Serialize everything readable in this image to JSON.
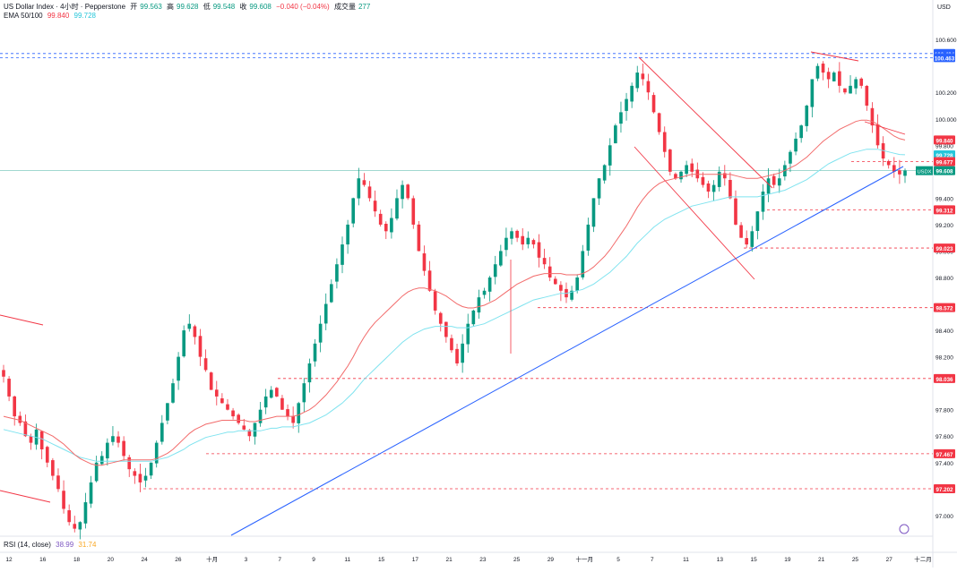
{
  "header": {
    "line1": "US Dollar Index · 4小时 · Pepperstone",
    "open_label": "开",
    "open": "99.563",
    "high_label": "高",
    "high": "99.628",
    "low_label": "低",
    "low": "99.548",
    "close_label": "收",
    "close": "99.608",
    "change": "−0.040 (−0.04%)",
    "volume_label": "成交量",
    "volume": "277",
    "ema_label": "EMA 50/100",
    "ema50": "99.840",
    "ema100": "99.728"
  },
  "rsi": {
    "label": "RSI (14, close)",
    "value1": "38.99",
    "value2": "31.74"
  },
  "colors": {
    "up": "#089981",
    "down": "#f23645",
    "ema50": "#f26b6b",
    "ema100": "#7fe3ef",
    "trend": "#2962ff",
    "channel": "#f23645",
    "price": "#089981"
  },
  "chart_data": {
    "type": "candlestick",
    "title": "US Dollar Index · 4小时 · Pepperstone",
    "currency": "USD",
    "y_range": [
      96.85,
      100.75
    ],
    "y_ticks": [
      "100.600",
      "100.200",
      "100.000",
      "99.800",
      "99.400",
      "99.200",
      "99.000",
      "98.800",
      "98.400",
      "98.200",
      "97.800",
      "97.600",
      "97.400",
      "97.000"
    ],
    "x_ticks": [
      "12",
      "16",
      "18",
      "20",
      "24",
      "26",
      "十月",
      "3",
      "7",
      "9",
      "11",
      "15",
      "17",
      "21",
      "23",
      "25",
      "29",
      "十一月",
      "5",
      "7",
      "11",
      "13",
      "15",
      "19",
      "21",
      "25",
      "27",
      "十二月"
    ],
    "price_badges": [
      {
        "text": "100.494",
        "kind": "blue",
        "y": 100.494
      },
      {
        "text": "100.463",
        "kind": "blue",
        "y": 100.463
      },
      {
        "text": "99.840",
        "kind": "red",
        "y": 99.84
      },
      {
        "text": "99.728",
        "kind": "cyan",
        "y": 99.728
      },
      {
        "text": "99.677",
        "kind": "red",
        "y": 99.677
      },
      {
        "text": "99.608",
        "kind": "green",
        "y": 99.608
      },
      {
        "text": "99.312",
        "kind": "red",
        "y": 99.312
      },
      {
        "text": "99.023",
        "kind": "red",
        "y": 99.023
      },
      {
        "text": "98.572",
        "kind": "red",
        "y": 98.572
      },
      {
        "text": "98.036",
        "kind": "red",
        "y": 98.036
      },
      {
        "text": "97.467",
        "kind": "red",
        "y": 97.467
      },
      {
        "text": "97.202",
        "kind": "red",
        "y": 97.202
      }
    ],
    "current_label": "USDX",
    "closes": [
      98.05,
      97.9,
      97.75,
      97.7,
      97.6,
      97.55,
      97.65,
      97.5,
      97.4,
      97.3,
      97.2,
      97.05,
      96.95,
      96.9,
      96.95,
      97.1,
      97.25,
      97.4,
      97.45,
      97.55,
      97.6,
      97.55,
      97.45,
      97.35,
      97.3,
      97.25,
      97.3,
      97.4,
      97.55,
      97.7,
      97.85,
      98.0,
      98.2,
      98.4,
      98.45,
      98.35,
      98.2,
      98.1,
      97.95,
      97.9,
      97.85,
      97.8,
      97.75,
      97.7,
      97.65,
      97.6,
      97.7,
      97.8,
      97.9,
      97.95,
      97.9,
      97.8,
      97.75,
      97.7,
      97.85,
      98.0,
      98.15,
      98.3,
      98.45,
      98.6,
      98.75,
      98.9,
      99.05,
      99.2,
      99.4,
      99.55,
      99.5,
      99.4,
      99.3,
      99.2,
      99.15,
      99.25,
      99.4,
      99.5,
      99.4,
      99.2,
      99.0,
      98.85,
      98.7,
      98.55,
      98.45,
      98.35,
      98.25,
      98.15,
      98.3,
      98.45,
      98.55,
      98.65,
      98.7,
      98.8,
      98.9,
      99.0,
      99.1,
      99.15,
      99.1,
      99.05,
      99.1,
      99.05,
      98.95,
      98.9,
      98.8,
      98.75,
      98.7,
      98.65,
      98.7,
      98.8,
      99.0,
      99.2,
      99.4,
      99.55,
      99.65,
      99.8,
      99.95,
      100.05,
      100.15,
      100.25,
      100.35,
      100.3,
      100.2,
      100.05,
      99.9,
      99.75,
      99.6,
      99.55,
      99.6,
      99.65,
      99.6,
      99.55,
      99.5,
      99.45,
      99.5,
      99.6,
      99.55,
      99.4,
      99.2,
      99.1,
      99.05,
      99.15,
      99.3,
      99.45,
      99.55,
      99.5,
      99.55,
      99.65,
      99.75,
      99.85,
      99.95,
      100.1,
      100.3,
      100.4,
      100.35,
      100.3,
      100.35,
      100.25,
      100.2,
      100.25,
      100.3,
      100.25,
      100.1,
      99.95,
      99.8,
      99.7,
      99.65,
      99.6,
      99.58,
      99.61
    ],
    "ema50": [
      97.75,
      97.74,
      97.73,
      97.72,
      97.7,
      97.68,
      97.66,
      97.64,
      97.62,
      97.6,
      97.57,
      97.54,
      97.5,
      97.46,
      97.43,
      97.41,
      97.39,
      97.38,
      97.38,
      97.39,
      97.4,
      97.41,
      97.42,
      97.42,
      97.42,
      97.42,
      97.42,
      97.42,
      97.43,
      97.45,
      97.47,
      97.5,
      97.54,
      97.58,
      97.62,
      97.65,
      97.67,
      97.69,
      97.7,
      97.71,
      97.72,
      97.72,
      97.72,
      97.72,
      97.72,
      97.71,
      97.71,
      97.72,
      97.73,
      97.74,
      97.75,
      97.75,
      97.75,
      97.75,
      97.76,
      97.78,
      97.8,
      97.83,
      97.87,
      97.91,
      97.96,
      98.01,
      98.07,
      98.13,
      98.2,
      98.28,
      98.35,
      98.41,
      98.46,
      98.5,
      98.54,
      98.58,
      98.62,
      98.66,
      98.69,
      98.71,
      98.72,
      98.72,
      98.71,
      98.7,
      98.68,
      98.66,
      98.63,
      98.6,
      98.58,
      98.57,
      98.57,
      98.58,
      98.59,
      98.61,
      98.63,
      98.66,
      98.69,
      98.72,
      98.75,
      98.77,
      98.79,
      98.81,
      98.82,
      98.83,
      98.83,
      98.83,
      98.83,
      98.82,
      98.82,
      98.82,
      98.83,
      98.85,
      98.88,
      98.92,
      98.96,
      99.01,
      99.07,
      99.13,
      99.19,
      99.26,
      99.33,
      99.39,
      99.44,
      99.48,
      99.51,
      99.53,
      99.54,
      99.55,
      99.56,
      99.57,
      99.58,
      99.58,
      99.58,
      99.58,
      99.58,
      99.58,
      99.58,
      99.58,
      99.57,
      99.56,
      99.55,
      99.55,
      99.55,
      99.56,
      99.57,
      99.58,
      99.59,
      99.61,
      99.63,
      99.65,
      99.68,
      99.71,
      99.75,
      99.79,
      99.83,
      99.86,
      99.89,
      99.92,
      99.94,
      99.96,
      99.98,
      99.99,
      99.99,
      99.98,
      99.96,
      99.93,
      99.9,
      99.87,
      99.85,
      99.84
    ],
    "ema100": [
      97.65,
      97.64,
      97.63,
      97.62,
      97.61,
      97.6,
      97.59,
      97.58,
      97.56,
      97.54,
      97.52,
      97.5,
      97.48,
      97.46,
      97.44,
      97.43,
      97.42,
      97.41,
      97.41,
      97.41,
      97.41,
      97.41,
      97.41,
      97.41,
      97.41,
      97.41,
      97.41,
      97.41,
      97.42,
      97.43,
      97.44,
      97.46,
      97.48,
      97.5,
      97.53,
      97.55,
      97.57,
      97.59,
      97.6,
      97.61,
      97.62,
      97.63,
      97.63,
      97.64,
      97.64,
      97.64,
      97.64,
      97.64,
      97.65,
      97.66,
      97.66,
      97.67,
      97.67,
      97.67,
      97.68,
      97.69,
      97.7,
      97.72,
      97.74,
      97.76,
      97.79,
      97.82,
      97.85,
      97.89,
      97.93,
      97.98,
      98.03,
      98.07,
      98.11,
      98.15,
      98.19,
      98.23,
      98.27,
      98.31,
      98.34,
      98.37,
      98.39,
      98.41,
      98.42,
      98.43,
      98.43,
      98.43,
      98.43,
      98.42,
      98.42,
      98.42,
      98.43,
      98.44,
      98.45,
      98.47,
      98.49,
      98.51,
      98.53,
      98.55,
      98.57,
      98.59,
      98.61,
      98.63,
      98.64,
      98.65,
      98.66,
      98.67,
      98.68,
      98.68,
      98.69,
      98.7,
      98.71,
      98.73,
      98.75,
      98.78,
      98.81,
      98.84,
      98.88,
      98.92,
      98.96,
      99.01,
      99.06,
      99.1,
      99.14,
      99.18,
      99.21,
      99.24,
      99.26,
      99.28,
      99.3,
      99.32,
      99.34,
      99.35,
      99.36,
      99.37,
      99.38,
      99.39,
      99.4,
      99.41,
      99.41,
      99.41,
      99.41,
      99.41,
      99.41,
      99.42,
      99.43,
      99.44,
      99.45,
      99.46,
      99.48,
      99.5,
      99.52,
      99.54,
      99.57,
      99.6,
      99.63,
      99.66,
      99.68,
      99.7,
      99.72,
      99.74,
      99.75,
      99.76,
      99.77,
      99.77,
      99.77,
      99.76,
      99.75,
      99.74,
      99.73,
      99.728
    ]
  }
}
